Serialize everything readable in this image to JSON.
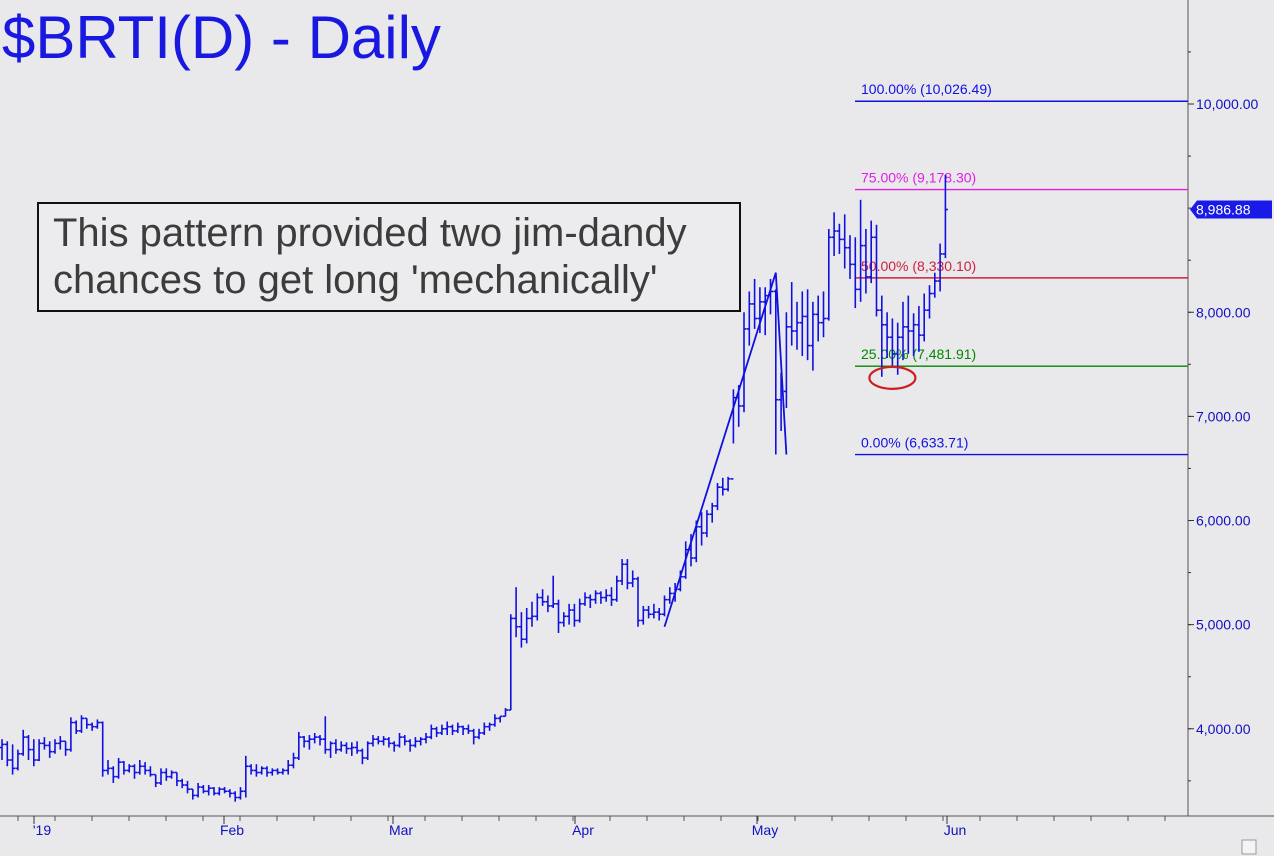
{
  "title": "$BRTI(D) - Daily",
  "commentary": {
    "line1": "This pattern provided two jim-dandy",
    "line2": "chances to get long 'mechanically'"
  },
  "colors": {
    "background": "#e9e9ec",
    "bars": "#1010e0",
    "fib_0": "#1010e0",
    "fib_25": "#008800",
    "fib_50": "#cc2040",
    "fib_75": "#e020e0",
    "fib_100": "#1010e0",
    "ellipse": "#cc2020"
  },
  "chart_data": {
    "type": "ohlc",
    "y_axis": {
      "min": 3000,
      "max": 11000,
      "ticks": [
        "4,000.00",
        "5,000.00",
        "6,000.00",
        "7,000.00",
        "8,000.00",
        "10,000.00"
      ],
      "tick_values": [
        4000,
        5000,
        6000,
        7000,
        8000,
        10000
      ]
    },
    "x_axis": {
      "labels": [
        "'19",
        "Feb",
        "Mar",
        "Apr",
        "May",
        "Jun"
      ]
    },
    "last_price": {
      "label": "8,986.88",
      "value": 8986.88
    },
    "fib_levels": [
      {
        "label": "100.00% (10,026.49)",
        "value": 10026.49,
        "color": "#1010e0"
      },
      {
        "label": "75.00% (9,178.30)",
        "value": 9178.3,
        "color": "#e020e0"
      },
      {
        "label": "50.00% (8,330.10)",
        "value": 8330.1,
        "color": "#cc2040"
      },
      {
        "label": "25.00% (7,481.91)",
        "value": 7481.91,
        "color": "#008800"
      },
      {
        "label": "0.00% (6,633.71)",
        "value": 6633.71,
        "color": "#1010e0"
      }
    ],
    "pattern_pivots": [
      {
        "bar": 125,
        "value": 4980
      },
      {
        "bar": 146,
        "value": 8380
      },
      {
        "bar": 148,
        "value": 6633.71
      }
    ],
    "highlight_circle": {
      "bar": 168,
      "value": 7370
    },
    "bars": [
      [
        3820,
        3900,
        3700,
        3850
      ],
      [
        3850,
        3880,
        3640,
        3700
      ],
      [
        3700,
        3850,
        3560,
        3620
      ],
      [
        3620,
        3800,
        3600,
        3760
      ],
      [
        3760,
        3990,
        3740,
        3920
      ],
      [
        3920,
        3940,
        3700,
        3800
      ],
      [
        3800,
        3900,
        3640,
        3700
      ],
      [
        3700,
        3900,
        3690,
        3860
      ],
      [
        3860,
        3920,
        3800,
        3840
      ],
      [
        3840,
        3880,
        3720,
        3780
      ],
      [
        3780,
        3900,
        3760,
        3860
      ],
      [
        3860,
        3930,
        3800,
        3880
      ],
      [
        3880,
        3880,
        3740,
        3800
      ],
      [
        3800,
        4110,
        3780,
        4060
      ],
      [
        4060,
        4080,
        3950,
        3980
      ],
      [
        3980,
        4130,
        3960,
        4100
      ],
      [
        4100,
        4100,
        4000,
        4040
      ],
      [
        4040,
        4060,
        3980,
        4020
      ],
      [
        4020,
        4090,
        4000,
        4060
      ],
      [
        4060,
        4070,
        3540,
        3600
      ],
      [
        3600,
        3700,
        3560,
        3620
      ],
      [
        3620,
        3640,
        3480,
        3540
      ],
      [
        3540,
        3720,
        3520,
        3680
      ],
      [
        3680,
        3690,
        3560,
        3600
      ],
      [
        3600,
        3660,
        3580,
        3640
      ],
      [
        3640,
        3660,
        3520,
        3580
      ],
      [
        3580,
        3700,
        3560,
        3640
      ],
      [
        3640,
        3680,
        3560,
        3600
      ],
      [
        3600,
        3640,
        3540,
        3560
      ],
      [
        3560,
        3560,
        3440,
        3480
      ],
      [
        3480,
        3620,
        3460,
        3580
      ],
      [
        3580,
        3620,
        3500,
        3540
      ],
      [
        3540,
        3600,
        3520,
        3580
      ],
      [
        3580,
        3580,
        3450,
        3500
      ],
      [
        3500,
        3520,
        3430,
        3460
      ],
      [
        3460,
        3500,
        3380,
        3420
      ],
      [
        3420,
        3420,
        3320,
        3360
      ],
      [
        3360,
        3480,
        3340,
        3440
      ],
      [
        3440,
        3460,
        3380,
        3400
      ],
      [
        3400,
        3460,
        3360,
        3430
      ],
      [
        3430,
        3440,
        3360,
        3380
      ],
      [
        3380,
        3440,
        3360,
        3420
      ],
      [
        3420,
        3440,
        3380,
        3400
      ],
      [
        3400,
        3420,
        3340,
        3380
      ],
      [
        3380,
        3400,
        3300,
        3340
      ],
      [
        3340,
        3440,
        3320,
        3400
      ],
      [
        3400,
        3740,
        3340,
        3640
      ],
      [
        3640,
        3660,
        3560,
        3600
      ],
      [
        3600,
        3660,
        3540,
        3580
      ],
      [
        3580,
        3640,
        3560,
        3620
      ],
      [
        3620,
        3640,
        3540,
        3580
      ],
      [
        3580,
        3620,
        3550,
        3600
      ],
      [
        3600,
        3620,
        3560,
        3580
      ],
      [
        3580,
        3620,
        3560,
        3600
      ],
      [
        3600,
        3700,
        3560,
        3650
      ],
      [
        3650,
        3770,
        3620,
        3720
      ],
      [
        3720,
        3970,
        3700,
        3920
      ],
      [
        3920,
        3930,
        3820,
        3880
      ],
      [
        3880,
        3940,
        3800,
        3900
      ],
      [
        3900,
        3960,
        3860,
        3920
      ],
      [
        3920,
        3940,
        3840,
        3900
      ],
      [
        3900,
        4120,
        3760,
        3800
      ],
      [
        3800,
        3880,
        3720,
        3860
      ],
      [
        3860,
        3900,
        3760,
        3800
      ],
      [
        3800,
        3880,
        3780,
        3840
      ],
      [
        3840,
        3870,
        3760,
        3810
      ],
      [
        3810,
        3870,
        3740,
        3820
      ],
      [
        3820,
        3880,
        3760,
        3790
      ],
      [
        3790,
        3810,
        3660,
        3720
      ],
      [
        3720,
        3880,
        3700,
        3860
      ],
      [
        3860,
        3940,
        3830,
        3900
      ],
      [
        3900,
        3930,
        3850,
        3880
      ],
      [
        3880,
        3930,
        3840,
        3900
      ],
      [
        3900,
        3920,
        3820,
        3860
      ],
      [
        3860,
        3880,
        3780,
        3840
      ],
      [
        3840,
        3960,
        3820,
        3920
      ],
      [
        3920,
        3940,
        3840,
        3880
      ],
      [
        3880,
        3900,
        3780,
        3840
      ],
      [
        3840,
        3920,
        3820,
        3880
      ],
      [
        3880,
        3920,
        3840,
        3900
      ],
      [
        3900,
        3960,
        3860,
        3920
      ],
      [
        3920,
        4040,
        3900,
        4000
      ],
      [
        4000,
        4020,
        3920,
        3960
      ],
      [
        3960,
        4040,
        3940,
        4000
      ],
      [
        4000,
        4070,
        3940,
        4020
      ],
      [
        4020,
        4040,
        3940,
        3980
      ],
      [
        3980,
        4060,
        3960,
        4020
      ],
      [
        4020,
        4030,
        3940,
        4000
      ],
      [
        4000,
        4040,
        3950,
        3980
      ],
      [
        3980,
        4000,
        3850,
        3920
      ],
      [
        3920,
        4000,
        3900,
        3960
      ],
      [
        3960,
        4060,
        3940,
        4020
      ],
      [
        4020,
        4060,
        3980,
        4040
      ],
      [
        4040,
        4140,
        4020,
        4100
      ],
      [
        4100,
        4120,
        4060,
        4120
      ],
      [
        4120,
        4200,
        4120,
        4180
      ],
      [
        4180,
        5100,
        4180,
        5060
      ],
      [
        5060,
        5360,
        4880,
        4980
      ],
      [
        4980,
        5120,
        4780,
        4860
      ],
      [
        4860,
        5160,
        4820,
        5060
      ],
      [
        5060,
        5220,
        4980,
        5080
      ],
      [
        5080,
        5300,
        5040,
        5260
      ],
      [
        5260,
        5340,
        5180,
        5220
      ],
      [
        5220,
        5280,
        5120,
        5180
      ],
      [
        5180,
        5470,
        5160,
        5200
      ],
      [
        5200,
        5240,
        4920,
        5020
      ],
      [
        5020,
        5120,
        4980,
        5080
      ],
      [
        5080,
        5200,
        5000,
        5140
      ],
      [
        5140,
        5200,
        4980,
        5040
      ],
      [
        5040,
        5250,
        5020,
        5200
      ],
      [
        5200,
        5310,
        5180,
        5260
      ],
      [
        5260,
        5290,
        5160,
        5240
      ],
      [
        5240,
        5330,
        5200,
        5300
      ],
      [
        5300,
        5320,
        5200,
        5260
      ],
      [
        5260,
        5340,
        5220,
        5280
      ],
      [
        5280,
        5360,
        5180,
        5240
      ],
      [
        5240,
        5470,
        5220,
        5420
      ],
      [
        5420,
        5630,
        5380,
        5580
      ],
      [
        5580,
        5630,
        5340,
        5400
      ],
      [
        5400,
        5520,
        5360,
        5440
      ],
      [
        5440,
        5460,
        4980,
        5040
      ],
      [
        5040,
        5180,
        5000,
        5140
      ],
      [
        5140,
        5180,
        5060,
        5100
      ],
      [
        5100,
        5200,
        5060,
        5120
      ],
      [
        5120,
        5160,
        5040,
        5100
      ],
      [
        5100,
        5280,
        5080,
        5240
      ],
      [
        5240,
        5360,
        5200,
        5300
      ],
      [
        5300,
        5400,
        5220,
        5340
      ],
      [
        5340,
        5520,
        5320,
        5460
      ],
      [
        5460,
        5800,
        5440,
        5720
      ],
      [
        5720,
        5870,
        5560,
        5640
      ],
      [
        5640,
        6000,
        5600,
        5940
      ],
      [
        5940,
        6080,
        5760,
        5880
      ],
      [
        5880,
        6100,
        5840,
        6060
      ],
      [
        6060,
        6170,
        5980,
        6140
      ],
      [
        6140,
        6360,
        6100,
        6320
      ],
      [
        6320,
        6410,
        6240,
        6300
      ],
      [
        6300,
        6420,
        6280,
        6400
      ],
      [
        6400,
        7260,
        6740,
        7180
      ],
      [
        7180,
        7300,
        6900,
        7100
      ],
      [
        7100,
        8000,
        7040,
        7840
      ],
      [
        7840,
        8200,
        7680,
        8080
      ],
      [
        8080,
        8320,
        7840,
        7940
      ],
      [
        7940,
        8240,
        7800,
        8100
      ],
      [
        8100,
        8240,
        7780,
        8160
      ],
      [
        8160,
        8320,
        7980,
        8200
      ],
      [
        8200,
        8220,
        6633.71,
        7160
      ],
      [
        7160,
        7420,
        6860,
        7240
      ],
      [
        7240,
        8000,
        7080,
        7860
      ],
      [
        7860,
        8290,
        7680,
        7820
      ],
      [
        7820,
        8100,
        7640,
        7900
      ],
      [
        7900,
        8200,
        7580,
        7960
      ],
      [
        7960,
        8220,
        7540,
        7680
      ],
      [
        7680,
        8100,
        7440,
        7980
      ],
      [
        7980,
        8160,
        7720,
        7900
      ],
      [
        7900,
        8200,
        7760,
        7940
      ],
      [
        7940,
        8800,
        7920,
        8720
      ],
      [
        8720,
        8960,
        8540,
        8780
      ],
      [
        8780,
        8850,
        8560,
        8700
      ],
      [
        8700,
        8940,
        8420,
        8620
      ],
      [
        8620,
        8740,
        8320,
        8460
      ],
      [
        8460,
        8720,
        8040,
        8220
      ],
      [
        8220,
        9080,
        8100,
        8640
      ],
      [
        8640,
        8800,
        8180,
        8340
      ],
      [
        8340,
        8880,
        8280,
        8720
      ],
      [
        8720,
        8840,
        7960,
        8020
      ],
      [
        8020,
        8160,
        7380,
        7880
      ],
      [
        7880,
        8000,
        7560,
        7760
      ],
      [
        7760,
        7940,
        7480,
        7600
      ],
      [
        7600,
        7900,
        7400,
        7760
      ],
      [
        7760,
        8100,
        7540,
        7860
      ],
      [
        7860,
        8160,
        7600,
        7820
      ],
      [
        7820,
        7990,
        7580,
        7880
      ],
      [
        7880,
        8060,
        7620,
        7780
      ],
      [
        7780,
        8180,
        7720,
        8020
      ],
      [
        8020,
        8260,
        7940,
        8180
      ],
      [
        8180,
        8380,
        8140,
        8300
      ],
      [
        8300,
        8660,
        8200,
        8560
      ],
      [
        8560,
        9320,
        8520,
        8986.88
      ]
    ]
  }
}
